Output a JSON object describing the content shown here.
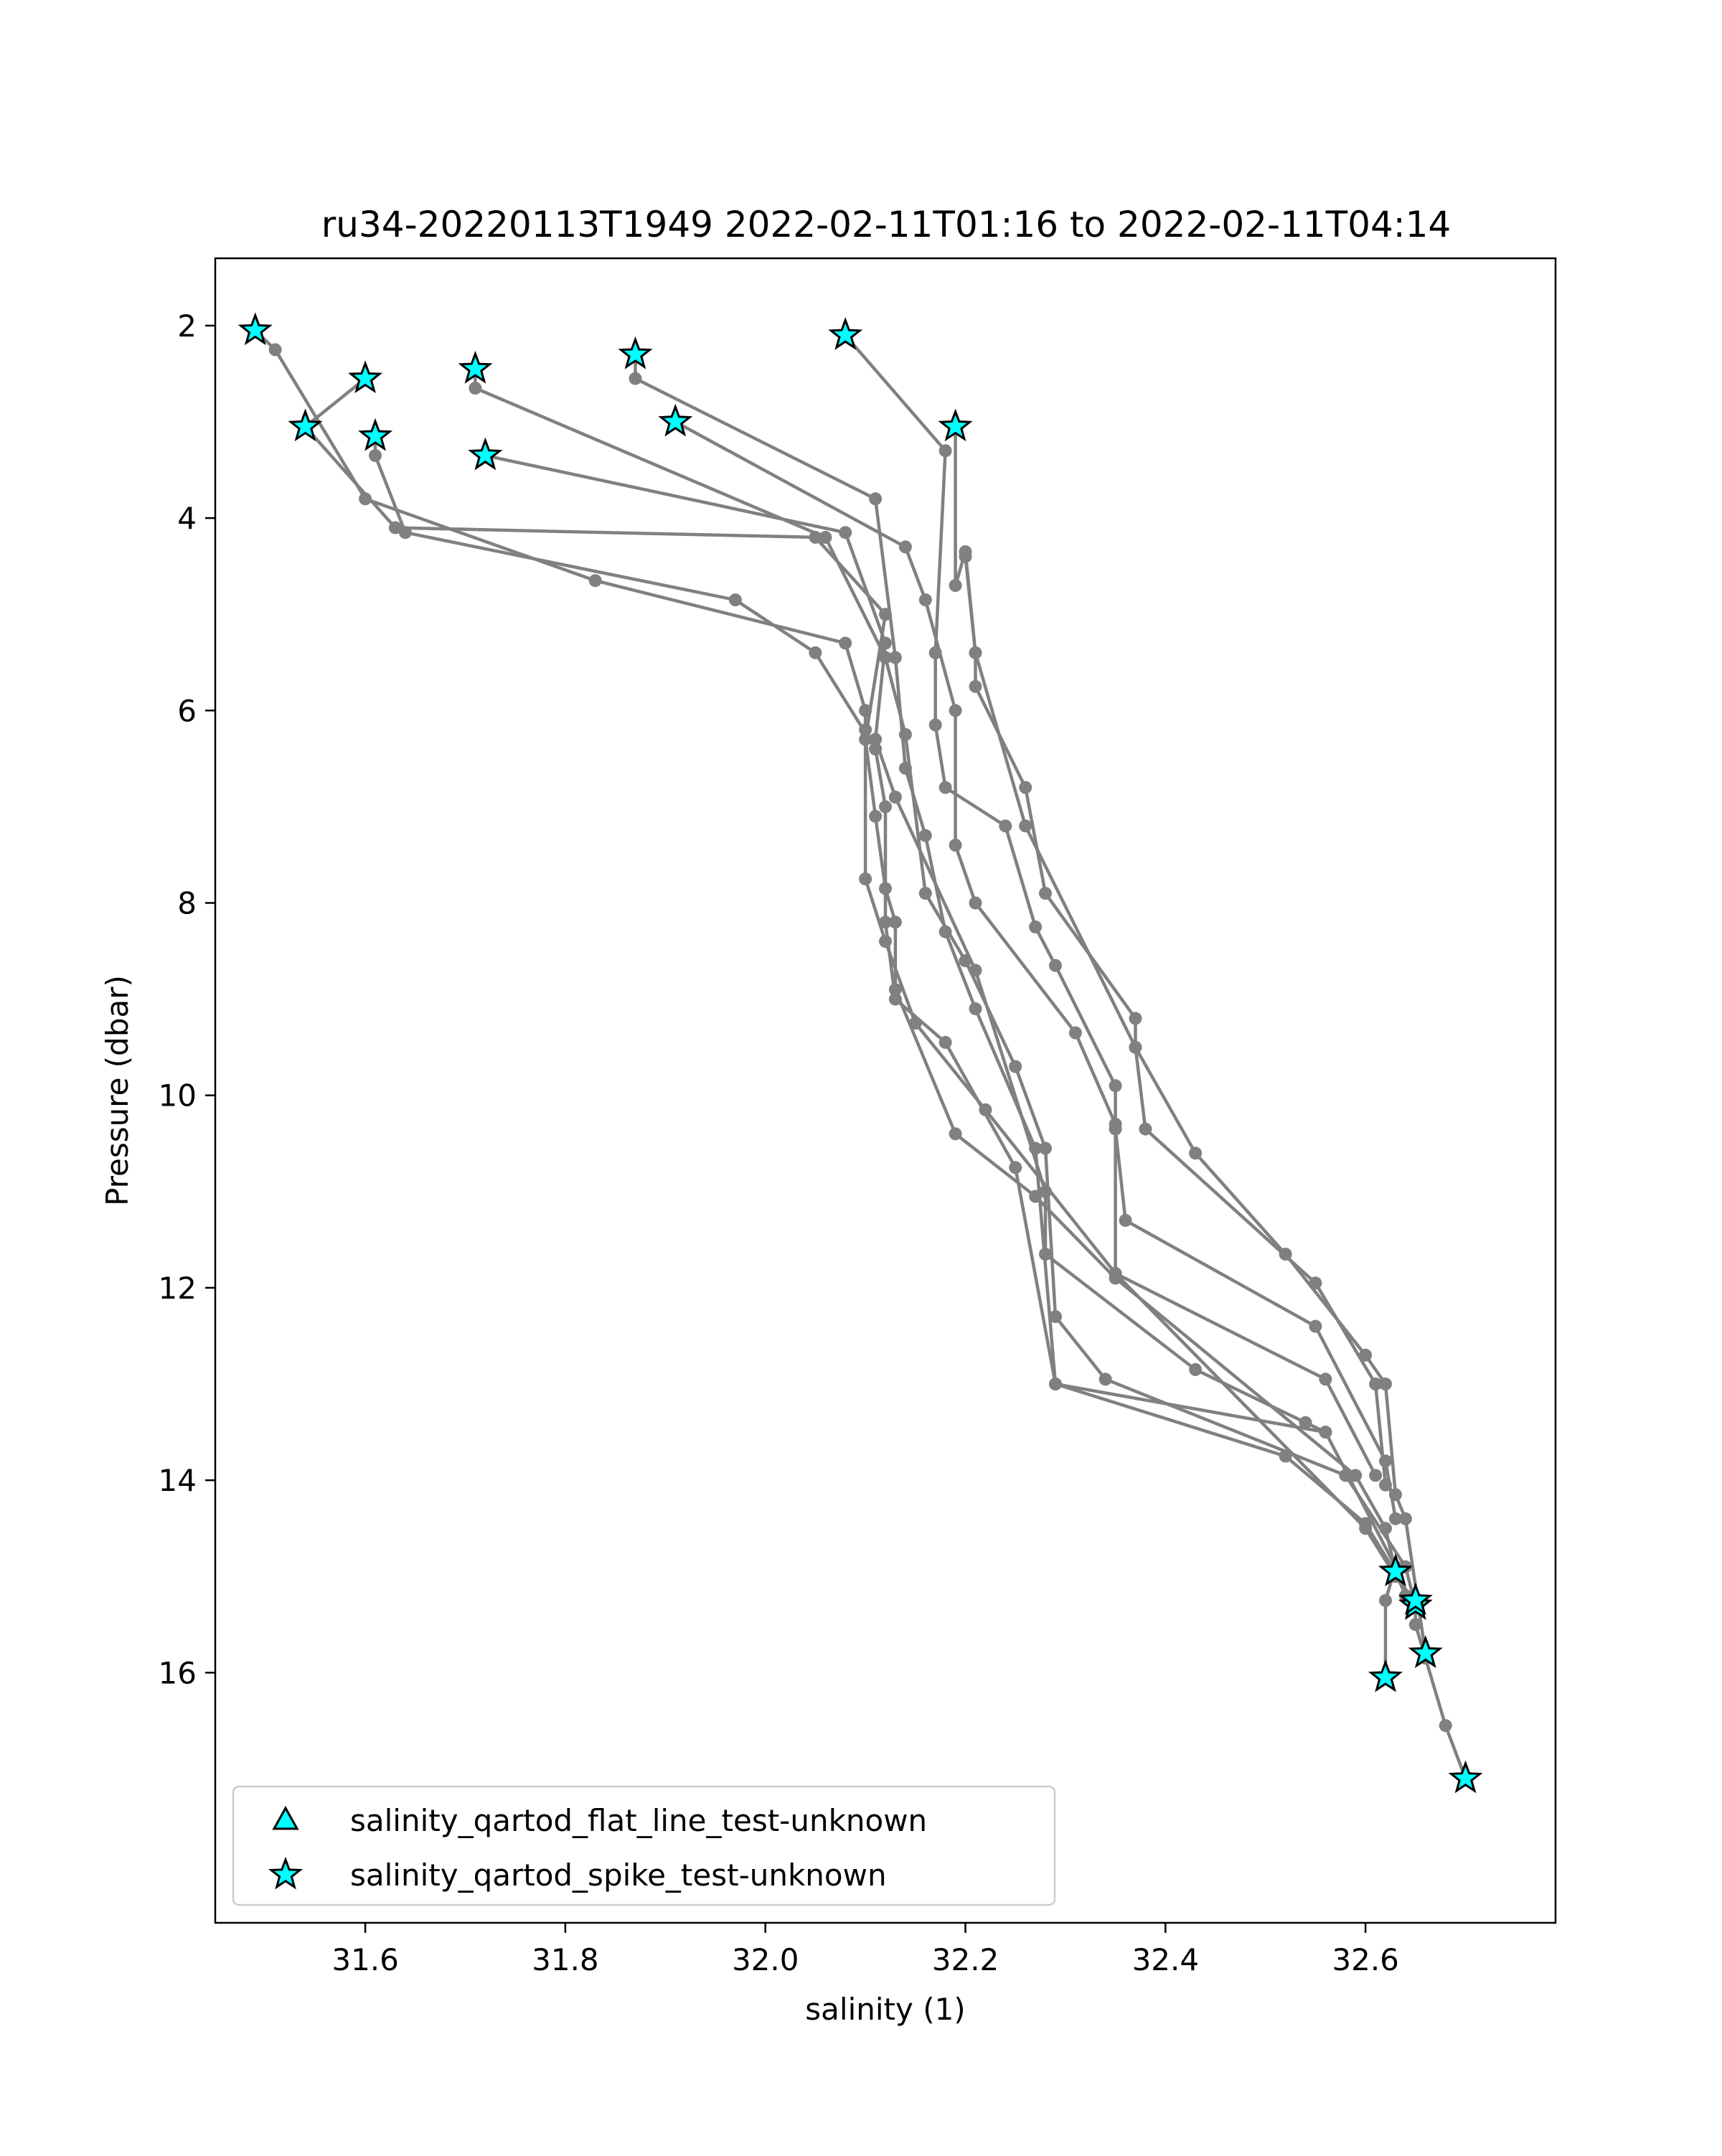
{
  "chart_data": {
    "type": "line",
    "title": "ru34-20220113T1949 2022-02-11T01:16 to 2022-02-11T04:14",
    "xlabel": "salinity (1)",
    "ylabel": "Pressure (dbar)",
    "xlim": [
      31.45,
      32.79
    ],
    "ylim": [
      18.6,
      1.3
    ],
    "y_inverted": true,
    "grid": false,
    "x_ticks": [
      31.6,
      31.8,
      32.0,
      32.2,
      32.4,
      32.6
    ],
    "x_tick_labels": [
      "31.6",
      "31.8",
      "32.0",
      "32.2",
      "32.4",
      "32.6"
    ],
    "y_ticks": [
      2,
      4,
      6,
      8,
      10,
      12,
      14,
      16
    ],
    "y_tick_labels": [
      "2",
      "4",
      "6",
      "8",
      "10",
      "12",
      "14",
      "16"
    ],
    "legend_position": "lower-left",
    "colors": {
      "profile_line": "#808080",
      "flag_fill": "#00ffff",
      "flag_edge": "#000000",
      "axes": "#000000",
      "background": "#ffffff"
    },
    "series": [
      {
        "values": [
          [
            31.49,
            2.05
          ],
          [
            31.51,
            2.25
          ],
          [
            31.6,
            3.8
          ],
          [
            31.83,
            4.65
          ],
          [
            32.08,
            5.3
          ],
          [
            32.1,
            6.0
          ],
          [
            32.1,
            6.2
          ],
          [
            32.1,
            7.75
          ],
          [
            32.12,
            8.4
          ],
          [
            32.15,
            9.25
          ],
          [
            32.22,
            10.15
          ],
          [
            32.35,
            11.85
          ],
          [
            32.6,
            14.5
          ],
          [
            32.63,
            15.0
          ],
          [
            32.65,
            15.3
          ],
          [
            32.65,
            15.5
          ],
          [
            32.66,
            15.85
          ],
          [
            32.68,
            16.55
          ],
          [
            32.7,
            17.1
          ]
        ]
      },
      {
        "values": [
          [
            31.6,
            2.55
          ],
          [
            31.54,
            3.05
          ],
          [
            31.63,
            4.1
          ],
          [
            32.05,
            4.2
          ],
          [
            32.12,
            5.0
          ],
          [
            32.1,
            6.3
          ],
          [
            32.11,
            7.1
          ],
          [
            32.12,
            7.85
          ],
          [
            32.13,
            8.2
          ],
          [
            32.13,
            8.9
          ],
          [
            32.19,
            10.4
          ],
          [
            32.27,
            11.05
          ],
          [
            32.35,
            11.9
          ],
          [
            32.59,
            13.95
          ],
          [
            32.62,
            14.5
          ],
          [
            32.63,
            14.95
          ],
          [
            32.64,
            15.2
          ],
          [
            32.65,
            15.25
          ]
        ]
      },
      {
        "values": [
          [
            31.61,
            3.15
          ],
          [
            31.61,
            3.35
          ],
          [
            31.64,
            4.15
          ],
          [
            31.97,
            4.85
          ],
          [
            32.05,
            5.4
          ],
          [
            32.11,
            6.4
          ],
          [
            32.12,
            7.0
          ],
          [
            32.12,
            8.2
          ],
          [
            32.13,
            9.0
          ],
          [
            32.18,
            9.45
          ],
          [
            32.25,
            10.75
          ],
          [
            32.29,
            13.0
          ],
          [
            32.56,
            13.5
          ],
          [
            32.63,
            14.9
          ],
          [
            32.62,
            15.25
          ],
          [
            32.62,
            16.05
          ]
        ]
      },
      {
        "values": [
          [
            31.71,
            2.45
          ],
          [
            31.71,
            2.65
          ],
          [
            32.06,
            4.2
          ],
          [
            32.12,
            5.45
          ],
          [
            32.14,
            6.25
          ],
          [
            32.16,
            7.9
          ],
          [
            32.2,
            8.6
          ],
          [
            32.25,
            9.7
          ],
          [
            32.28,
            10.55
          ],
          [
            32.29,
            12.3
          ],
          [
            32.34,
            12.95
          ],
          [
            32.58,
            13.95
          ],
          [
            32.64,
            14.9
          ],
          [
            32.65,
            15.3
          ]
        ]
      },
      {
        "values": [
          [
            31.87,
            2.3
          ],
          [
            31.87,
            2.55
          ],
          [
            32.11,
            3.8
          ],
          [
            32.13,
            5.45
          ],
          [
            32.14,
            6.6
          ],
          [
            32.16,
            7.3
          ],
          [
            32.18,
            8.3
          ],
          [
            32.21,
            9.1
          ],
          [
            32.27,
            10.55
          ],
          [
            32.29,
            13.0
          ],
          [
            32.52,
            13.75
          ],
          [
            32.6,
            14.45
          ],
          [
            32.65,
            15.3
          ]
        ]
      },
      {
        "values": [
          [
            31.72,
            3.35
          ],
          [
            32.08,
            4.15
          ],
          [
            32.12,
            5.3
          ],
          [
            32.11,
            6.3
          ],
          [
            32.13,
            6.9
          ],
          [
            32.21,
            8.7
          ],
          [
            32.28,
            11.0
          ],
          [
            32.28,
            11.65
          ],
          [
            32.43,
            12.85
          ],
          [
            32.54,
            13.4
          ],
          [
            32.56,
            13.5
          ]
        ]
      },
      {
        "values": [
          [
            31.91,
            3.0
          ],
          [
            32.14,
            4.3
          ],
          [
            32.16,
            4.85
          ],
          [
            32.19,
            6.0
          ],
          [
            32.19,
            7.4
          ],
          [
            32.21,
            8.0
          ],
          [
            32.31,
            9.35
          ],
          [
            32.35,
            10.3
          ],
          [
            32.35,
            11.85
          ],
          [
            32.56,
            12.95
          ],
          [
            32.61,
            13.95
          ]
        ]
      },
      {
        "values": [
          [
            32.08,
            2.1
          ],
          [
            32.18,
            3.3
          ],
          [
            32.17,
            5.4
          ],
          [
            32.17,
            6.15
          ],
          [
            32.18,
            6.8
          ],
          [
            32.24,
            7.2
          ],
          [
            32.27,
            8.25
          ],
          [
            32.29,
            8.65
          ],
          [
            32.35,
            9.9
          ],
          [
            32.35,
            10.35
          ],
          [
            32.36,
            11.3
          ],
          [
            32.55,
            12.4
          ],
          [
            32.62,
            13.8
          ],
          [
            32.63,
            14.4
          ]
        ]
      },
      {
        "values": [
          [
            32.19,
            3.05
          ],
          [
            32.19,
            4.7
          ],
          [
            32.2,
            4.35
          ],
          [
            32.21,
            5.4
          ],
          [
            32.21,
            5.75
          ],
          [
            32.26,
            6.8
          ],
          [
            32.28,
            7.9
          ],
          [
            32.37,
            9.2
          ],
          [
            32.37,
            9.5
          ],
          [
            32.43,
            10.6
          ],
          [
            32.52,
            11.65
          ],
          [
            32.6,
            12.7
          ],
          [
            32.62,
            13.0
          ],
          [
            32.63,
            14.15
          ],
          [
            32.64,
            14.4
          ],
          [
            32.66,
            15.8
          ]
        ]
      },
      {
        "values": [
          [
            32.2,
            4.4
          ],
          [
            32.21,
            5.4
          ],
          [
            32.26,
            7.2
          ],
          [
            32.37,
            9.5
          ],
          [
            32.38,
            10.35
          ],
          [
            32.55,
            11.95
          ],
          [
            32.61,
            13.0
          ],
          [
            32.62,
            14.05
          ]
        ]
      }
    ],
    "flag_series": [
      {
        "name": "salinity_qartod_flat_line_test-unknown",
        "marker": "triangle",
        "values": []
      },
      {
        "name": "salinity_qartod_spike_test-unknown",
        "marker": "star",
        "values": [
          [
            31.49,
            2.05
          ],
          [
            31.54,
            3.05
          ],
          [
            31.6,
            2.55
          ],
          [
            31.61,
            3.15
          ],
          [
            31.71,
            2.45
          ],
          [
            31.72,
            3.35
          ],
          [
            31.87,
            2.3
          ],
          [
            31.91,
            3.0
          ],
          [
            32.08,
            2.1
          ],
          [
            32.19,
            3.05
          ],
          [
            32.63,
            14.95
          ],
          [
            32.65,
            15.3
          ],
          [
            32.65,
            15.25
          ],
          [
            32.66,
            15.8
          ],
          [
            32.62,
            16.05
          ],
          [
            32.7,
            17.1
          ]
        ]
      }
    ]
  }
}
